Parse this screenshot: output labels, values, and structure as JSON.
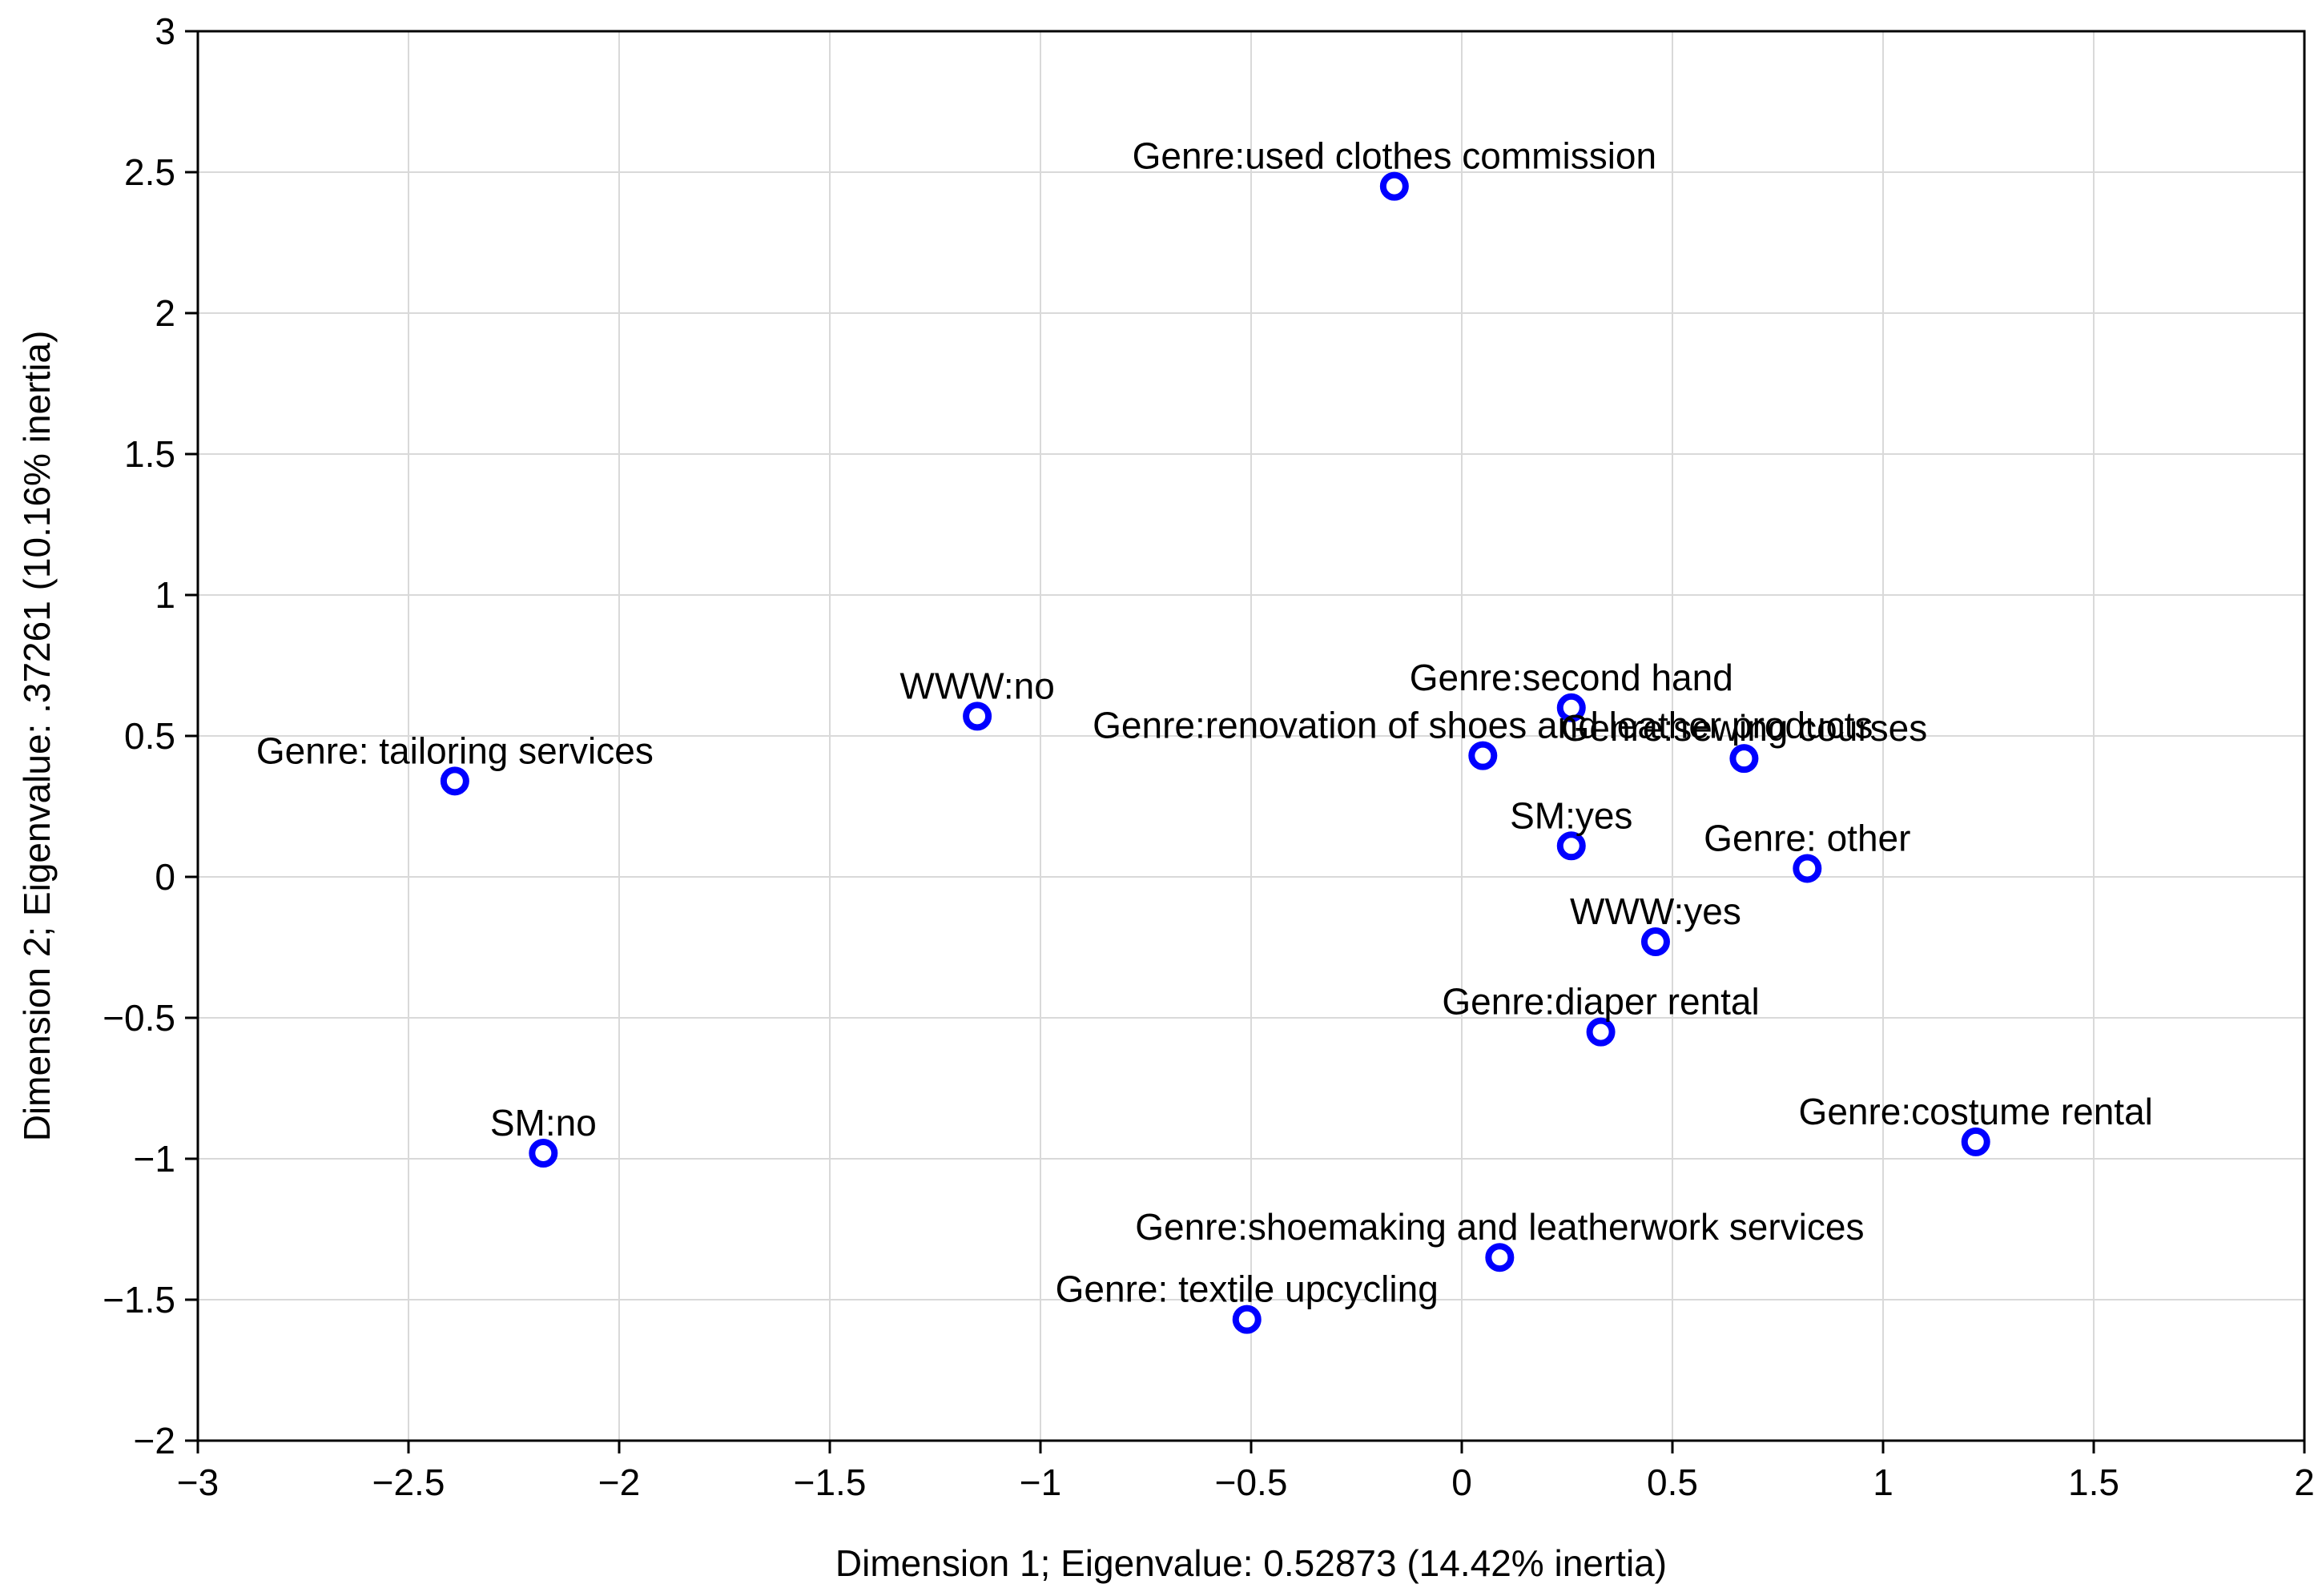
{
  "chart_data": {
    "type": "scatter",
    "title": "",
    "xlabel": "Dimension 1; Eigenvalue: 0.52873 (14.42% inertia)",
    "ylabel": "Dimension 2; Eigenvalue: .37261 (10.16% inertia)",
    "xlim": [
      -3,
      2
    ],
    "ylim": [
      -2,
      3
    ],
    "grid": true,
    "legend": "none",
    "marker_color": "#0000ff",
    "grid_color": "#d9d9d9",
    "x_ticks": [
      {
        "value": -3,
        "label": "−3"
      },
      {
        "value": -2.5,
        "label": "−2.5"
      },
      {
        "value": -2,
        "label": "−2"
      },
      {
        "value": -1.5,
        "label": "−1.5"
      },
      {
        "value": -1,
        "label": "−1"
      },
      {
        "value": -0.5,
        "label": "−0.5"
      },
      {
        "value": 0,
        "label": "0"
      },
      {
        "value": 0.5,
        "label": "0.5"
      },
      {
        "value": 1,
        "label": "1"
      },
      {
        "value": 1.5,
        "label": "1.5"
      },
      {
        "value": 2,
        "label": "2"
      }
    ],
    "y_ticks": [
      {
        "value": -2,
        "label": "−2"
      },
      {
        "value": -1.5,
        "label": "−1.5"
      },
      {
        "value": -1,
        "label": "−1"
      },
      {
        "value": -0.5,
        "label": "−0.5"
      },
      {
        "value": 0,
        "label": "0"
      },
      {
        "value": 0.5,
        "label": "0.5"
      },
      {
        "value": 1,
        "label": "1"
      },
      {
        "value": 1.5,
        "label": "1.5"
      },
      {
        "value": 2,
        "label": "2"
      },
      {
        "value": 2.5,
        "label": "2.5"
      },
      {
        "value": 3,
        "label": "3"
      }
    ],
    "points": [
      {
        "label": "Genre:used clothes commission",
        "x": -0.16,
        "y": 2.45
      },
      {
        "label": "Genre:second hand",
        "x": 0.26,
        "y": 0.6
      },
      {
        "label": "Genre:sewing courses",
        "x": 0.67,
        "y": 0.42
      },
      {
        "label": "WWW:no",
        "x": -1.15,
        "y": 0.57
      },
      {
        "label": "Genre:renovation of shoes and leather products",
        "x": 0.05,
        "y": 0.43
      },
      {
        "label": "Genre: tailoring services",
        "x": -2.39,
        "y": 0.34
      },
      {
        "label": "SM:yes",
        "x": 0.26,
        "y": 0.11
      },
      {
        "label": "Genre: other",
        "x": 0.82,
        "y": 0.03
      },
      {
        "label": "WWW:yes",
        "x": 0.46,
        "y": -0.23
      },
      {
        "label": "Genre:diaper rental",
        "x": 0.33,
        "y": -0.55
      },
      {
        "label": "Genre:costume rental",
        "x": 1.22,
        "y": -0.94
      },
      {
        "label": "SM:no",
        "x": -2.18,
        "y": -0.98
      },
      {
        "label": "Genre:shoemaking and leatherwork services",
        "x": 0.09,
        "y": -1.35
      },
      {
        "label": "Genre: textile upcycling",
        "x": -0.51,
        "y": -1.57
      }
    ]
  }
}
